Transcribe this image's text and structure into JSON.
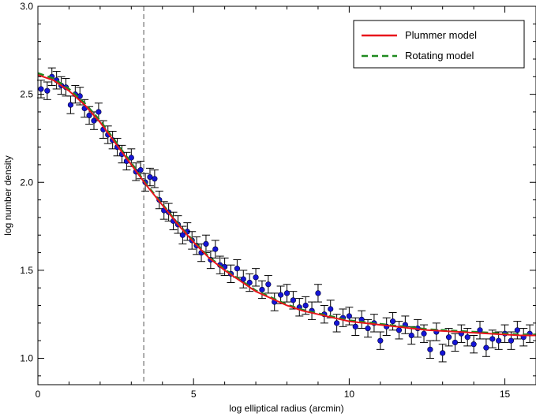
{
  "chart_data": {
    "type": "scatter",
    "title": "",
    "xlabel": "log elliptical radius (arcmin)",
    "ylabel": "log number density",
    "xlim": [
      0,
      16
    ],
    "ylim": [
      0.85,
      3.0
    ],
    "xticks": [
      0,
      5,
      10,
      15
    ],
    "xtick_labels": [
      "0",
      "5",
      "10",
      "15"
    ],
    "yticks": [
      1.0,
      1.5,
      2.0,
      2.5,
      3.0
    ],
    "ytick_labels": [
      "1.0",
      "1.5",
      "2.0",
      "2.5",
      "3.0"
    ],
    "grid": false,
    "legend_position": "top-right",
    "vline": 3.4,
    "series": [
      {
        "name": "Plummer model",
        "kind": "line",
        "style": "solid",
        "color": "#e8151b",
        "x": [
          0,
          0.5,
          1.0,
          1.5,
          2.0,
          2.5,
          3.0,
          3.5,
          4.0,
          4.5,
          5.0,
          5.5,
          6.0,
          6.5,
          7.0,
          7.5,
          8.0,
          8.5,
          9.0,
          9.5,
          10.0,
          10.5,
          11.0,
          11.5,
          12.0,
          12.5,
          13.0,
          13.5,
          14.0,
          14.5,
          15.0,
          15.5,
          16.0
        ],
        "y": [
          2.61,
          2.58,
          2.52,
          2.44,
          2.34,
          2.22,
          2.1,
          1.98,
          1.87,
          1.76,
          1.66,
          1.57,
          1.5,
          1.44,
          1.38,
          1.34,
          1.3,
          1.27,
          1.25,
          1.23,
          1.21,
          1.2,
          1.19,
          1.18,
          1.17,
          1.16,
          1.155,
          1.15,
          1.145,
          1.14,
          1.135,
          1.13,
          1.13
        ]
      },
      {
        "name": "Rotating model",
        "kind": "line",
        "style": "dashed",
        "color": "#1f8a1f",
        "x": [
          0,
          0.5,
          1.0,
          1.5,
          2.0,
          2.5,
          3.0,
          3.5,
          4.0,
          4.5,
          5.0,
          5.5,
          6.0,
          6.5,
          7.0,
          7.5,
          8.0,
          8.5,
          9.0,
          9.5,
          10.0,
          10.5,
          11.0,
          11.5,
          12.0,
          12.5,
          13.0,
          13.5,
          14.0,
          14.5,
          15.0,
          15.5,
          16.0
        ],
        "y": [
          2.62,
          2.59,
          2.53,
          2.45,
          2.35,
          2.23,
          2.11,
          1.985,
          1.875,
          1.765,
          1.665,
          1.575,
          1.505,
          1.445,
          1.385,
          1.345,
          1.305,
          1.275,
          1.255,
          1.235,
          1.215,
          1.205,
          1.195,
          1.185,
          1.175,
          1.165,
          1.16,
          1.155,
          1.15,
          1.145,
          1.14,
          1.135,
          1.135
        ]
      },
      {
        "name": "",
        "kind": "points",
        "color": "#1515d6",
        "error": 0.05,
        "x": [
          0.1,
          0.3,
          0.45,
          0.6,
          0.75,
          0.9,
          1.05,
          1.2,
          1.35,
          1.5,
          1.65,
          1.8,
          1.95,
          2.1,
          2.25,
          2.4,
          2.55,
          2.7,
          2.85,
          3.0,
          3.15,
          3.3,
          3.45,
          3.6,
          3.75,
          3.9,
          4.05,
          4.2,
          4.35,
          4.5,
          4.65,
          4.8,
          4.95,
          5.1,
          5.25,
          5.4,
          5.55,
          5.7,
          5.85,
          6.0,
          6.2,
          6.4,
          6.6,
          6.8,
          7.0,
          7.2,
          7.4,
          7.6,
          7.8,
          8.0,
          8.2,
          8.4,
          8.6,
          8.8,
          9.0,
          9.2,
          9.4,
          9.6,
          9.8,
          10.0,
          10.2,
          10.4,
          10.6,
          10.8,
          11.0,
          11.2,
          11.4,
          11.6,
          11.8,
          12.0,
          12.2,
          12.4,
          12.6,
          12.8,
          13.0,
          13.2,
          13.4,
          13.6,
          13.8,
          14.0,
          14.2,
          14.4,
          14.6,
          14.8,
          15.0,
          15.2,
          15.4,
          15.6,
          15.8
        ],
        "y": [
          2.53,
          2.52,
          2.6,
          2.58,
          2.55,
          2.54,
          2.44,
          2.5,
          2.49,
          2.42,
          2.38,
          2.35,
          2.4,
          2.3,
          2.27,
          2.24,
          2.2,
          2.16,
          2.12,
          2.14,
          2.06,
          2.07,
          2.0,
          2.03,
          2.02,
          1.9,
          1.84,
          1.83,
          1.78,
          1.76,
          1.7,
          1.72,
          1.67,
          1.64,
          1.6,
          1.65,
          1.56,
          1.62,
          1.53,
          1.52,
          1.48,
          1.51,
          1.45,
          1.43,
          1.46,
          1.39,
          1.42,
          1.32,
          1.36,
          1.37,
          1.33,
          1.29,
          1.3,
          1.27,
          1.37,
          1.25,
          1.28,
          1.2,
          1.23,
          1.24,
          1.18,
          1.22,
          1.17,
          1.2,
          1.1,
          1.18,
          1.21,
          1.16,
          1.19,
          1.13,
          1.17,
          1.14,
          1.05,
          1.15,
          1.03,
          1.12,
          1.09,
          1.14,
          1.12,
          1.08,
          1.16,
          1.06,
          1.11,
          1.1,
          1.14,
          1.1,
          1.16,
          1.12,
          1.14
        ]
      }
    ]
  }
}
